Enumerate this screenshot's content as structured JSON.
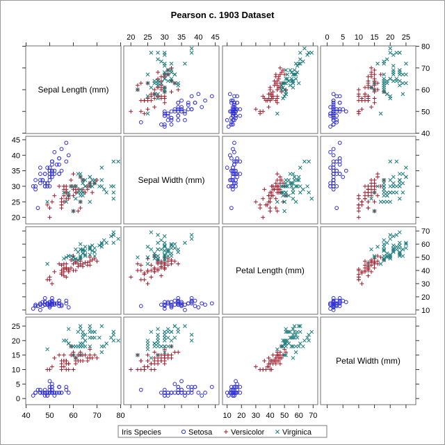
{
  "chart_data": {
    "type": "scatter-matrix",
    "title": "Pearson c. 1903 Dataset",
    "variables": [
      {
        "key": "sl",
        "label": "Sepal Length (mm)",
        "range": [
          40,
          80
        ],
        "ticks": [
          40,
          50,
          60,
          70,
          80
        ]
      },
      {
        "key": "sw",
        "label": "Sepal Width (mm)",
        "range": [
          18,
          46
        ],
        "ticks": [
          20,
          25,
          30,
          35,
          40,
          45
        ]
      },
      {
        "key": "pl",
        "label": "Petal Length (mm)",
        "range": [
          7,
          73
        ],
        "ticks": [
          10,
          20,
          30,
          40,
          50,
          60,
          70
        ]
      },
      {
        "key": "pw",
        "label": "Petal Width (mm)",
        "range": [
          -2,
          28
        ],
        "ticks": [
          0,
          5,
          10,
          15,
          20,
          25
        ]
      }
    ],
    "axis_placement": {
      "top": [
        1,
        3
      ],
      "bottom": [
        0,
        2
      ],
      "left": [
        1,
        3
      ],
      "right": [
        0,
        2
      ]
    },
    "legend": {
      "title": "Iris Species",
      "position": "bottom"
    },
    "series": [
      {
        "name": "Setosa",
        "marker": "circle",
        "color": "#2f2fd6",
        "points": [
          [
            51,
            35,
            14,
            2
          ],
          [
            49,
            30,
            14,
            2
          ],
          [
            47,
            32,
            13,
            2
          ],
          [
            46,
            31,
            15,
            2
          ],
          [
            50,
            36,
            14,
            2
          ],
          [
            54,
            39,
            17,
            4
          ],
          [
            46,
            34,
            14,
            3
          ],
          [
            50,
            34,
            15,
            2
          ],
          [
            44,
            29,
            14,
            2
          ],
          [
            49,
            31,
            15,
            1
          ],
          [
            54,
            37,
            15,
            2
          ],
          [
            48,
            34,
            16,
            2
          ],
          [
            48,
            30,
            14,
            1
          ],
          [
            43,
            30,
            11,
            1
          ],
          [
            58,
            40,
            12,
            2
          ],
          [
            57,
            44,
            15,
            4
          ],
          [
            54,
            39,
            13,
            4
          ],
          [
            51,
            35,
            14,
            3
          ],
          [
            57,
            38,
            17,
            3
          ],
          [
            51,
            38,
            15,
            3
          ],
          [
            54,
            34,
            17,
            2
          ],
          [
            51,
            37,
            15,
            4
          ],
          [
            46,
            36,
            10,
            2
          ],
          [
            51,
            33,
            17,
            5
          ],
          [
            48,
            34,
            19,
            2
          ],
          [
            50,
            30,
            16,
            2
          ],
          [
            50,
            34,
            16,
            4
          ],
          [
            52,
            35,
            15,
            2
          ],
          [
            52,
            34,
            14,
            2
          ],
          [
            47,
            32,
            16,
            2
          ],
          [
            48,
            31,
            16,
            2
          ],
          [
            54,
            34,
            15,
            4
          ],
          [
            52,
            41,
            15,
            1
          ],
          [
            55,
            42,
            14,
            2
          ],
          [
            49,
            31,
            15,
            2
          ],
          [
            50,
            32,
            12,
            2
          ],
          [
            55,
            35,
            13,
            2
          ],
          [
            49,
            36,
            14,
            1
          ],
          [
            44,
            30,
            13,
            2
          ],
          [
            51,
            34,
            15,
            2
          ],
          [
            50,
            35,
            13,
            3
          ],
          [
            45,
            23,
            13,
            3
          ],
          [
            44,
            32,
            13,
            2
          ],
          [
            50,
            35,
            16,
            6
          ],
          [
            51,
            38,
            19,
            4
          ],
          [
            48,
            30,
            14,
            3
          ],
          [
            51,
            38,
            16,
            2
          ],
          [
            46,
            32,
            14,
            2
          ],
          [
            53,
            37,
            15,
            2
          ],
          [
            50,
            33,
            14,
            2
          ]
        ]
      },
      {
        "name": "Versicolor",
        "marker": "plus",
        "color": "#a01c2c",
        "points": [
          [
            70,
            32,
            47,
            14
          ],
          [
            64,
            32,
            45,
            15
          ],
          [
            69,
            31,
            49,
            15
          ],
          [
            55,
            23,
            40,
            13
          ],
          [
            65,
            28,
            46,
            15
          ],
          [
            57,
            28,
            45,
            13
          ],
          [
            63,
            33,
            47,
            16
          ],
          [
            49,
            24,
            33,
            10
          ],
          [
            66,
            29,
            46,
            13
          ],
          [
            52,
            27,
            39,
            14
          ],
          [
            50,
            20,
            35,
            10
          ],
          [
            59,
            30,
            42,
            15
          ],
          [
            60,
            22,
            40,
            10
          ],
          [
            61,
            29,
            47,
            14
          ],
          [
            56,
            29,
            36,
            13
          ],
          [
            67,
            31,
            44,
            14
          ],
          [
            56,
            30,
            45,
            15
          ],
          [
            58,
            27,
            41,
            10
          ],
          [
            62,
            22,
            45,
            15
          ],
          [
            56,
            25,
            39,
            11
          ],
          [
            59,
            32,
            48,
            18
          ],
          [
            61,
            28,
            40,
            13
          ],
          [
            63,
            25,
            49,
            15
          ],
          [
            61,
            28,
            47,
            12
          ],
          [
            64,
            29,
            43,
            13
          ],
          [
            66,
            30,
            44,
            14
          ],
          [
            68,
            28,
            48,
            14
          ],
          [
            67,
            30,
            50,
            17
          ],
          [
            60,
            29,
            45,
            15
          ],
          [
            57,
            26,
            35,
            10
          ],
          [
            55,
            24,
            38,
            11
          ],
          [
            55,
            24,
            37,
            10
          ],
          [
            58,
            27,
            39,
            12
          ],
          [
            60,
            27,
            51,
            16
          ],
          [
            54,
            30,
            45,
            15
          ],
          [
            60,
            34,
            45,
            16
          ],
          [
            67,
            31,
            47,
            15
          ],
          [
            63,
            23,
            44,
            13
          ],
          [
            56,
            30,
            41,
            13
          ],
          [
            55,
            25,
            40,
            13
          ],
          [
            55,
            26,
            44,
            12
          ],
          [
            61,
            30,
            46,
            14
          ],
          [
            58,
            26,
            40,
            12
          ],
          [
            50,
            23,
            33,
            10
          ],
          [
            56,
            27,
            42,
            13
          ],
          [
            57,
            30,
            42,
            12
          ],
          [
            57,
            29,
            42,
            13
          ],
          [
            62,
            29,
            43,
            13
          ],
          [
            51,
            25,
            30,
            11
          ],
          [
            57,
            28,
            41,
            13
          ]
        ]
      },
      {
        "name": "Virginica",
        "marker": "x",
        "color": "#1a7a7a",
        "points": [
          [
            63,
            33,
            60,
            25
          ],
          [
            58,
            27,
            51,
            19
          ],
          [
            71,
            30,
            59,
            21
          ],
          [
            63,
            29,
            56,
            18
          ],
          [
            65,
            30,
            58,
            22
          ],
          [
            76,
            30,
            66,
            21
          ],
          [
            49,
            25,
            45,
            17
          ],
          [
            73,
            29,
            63,
            18
          ],
          [
            67,
            25,
            58,
            18
          ],
          [
            72,
            36,
            61,
            25
          ],
          [
            65,
            32,
            51,
            20
          ],
          [
            64,
            27,
            53,
            19
          ],
          [
            68,
            30,
            55,
            21
          ],
          [
            57,
            25,
            50,
            20
          ],
          [
            58,
            28,
            51,
            24
          ],
          [
            64,
            32,
            53,
            23
          ],
          [
            65,
            30,
            55,
            18
          ],
          [
            77,
            38,
            67,
            22
          ],
          [
            77,
            26,
            69,
            23
          ],
          [
            60,
            22,
            50,
            15
          ],
          [
            69,
            32,
            57,
            23
          ],
          [
            56,
            28,
            49,
            20
          ],
          [
            77,
            28,
            67,
            20
          ],
          [
            63,
            27,
            49,
            18
          ],
          [
            67,
            33,
            57,
            21
          ],
          [
            72,
            32,
            60,
            18
          ],
          [
            62,
            28,
            48,
            18
          ],
          [
            61,
            30,
            49,
            18
          ],
          [
            64,
            28,
            56,
            21
          ],
          [
            72,
            30,
            58,
            16
          ],
          [
            74,
            28,
            61,
            19
          ],
          [
            79,
            38,
            64,
            20
          ],
          [
            64,
            28,
            56,
            22
          ],
          [
            63,
            28,
            51,
            15
          ],
          [
            61,
            26,
            56,
            14
          ],
          [
            77,
            30,
            61,
            23
          ],
          [
            63,
            34,
            56,
            24
          ],
          [
            64,
            31,
            55,
            18
          ],
          [
            60,
            30,
            48,
            18
          ],
          [
            69,
            31,
            54,
            21
          ],
          [
            67,
            31,
            56,
            24
          ],
          [
            69,
            31,
            51,
            23
          ],
          [
            58,
            27,
            51,
            19
          ],
          [
            68,
            32,
            59,
            23
          ],
          [
            67,
            33,
            57,
            25
          ],
          [
            67,
            30,
            52,
            23
          ],
          [
            63,
            25,
            50,
            19
          ],
          [
            65,
            30,
            52,
            20
          ],
          [
            62,
            34,
            54,
            23
          ],
          [
            59,
            30,
            51,
            18
          ]
        ]
      }
    ]
  }
}
